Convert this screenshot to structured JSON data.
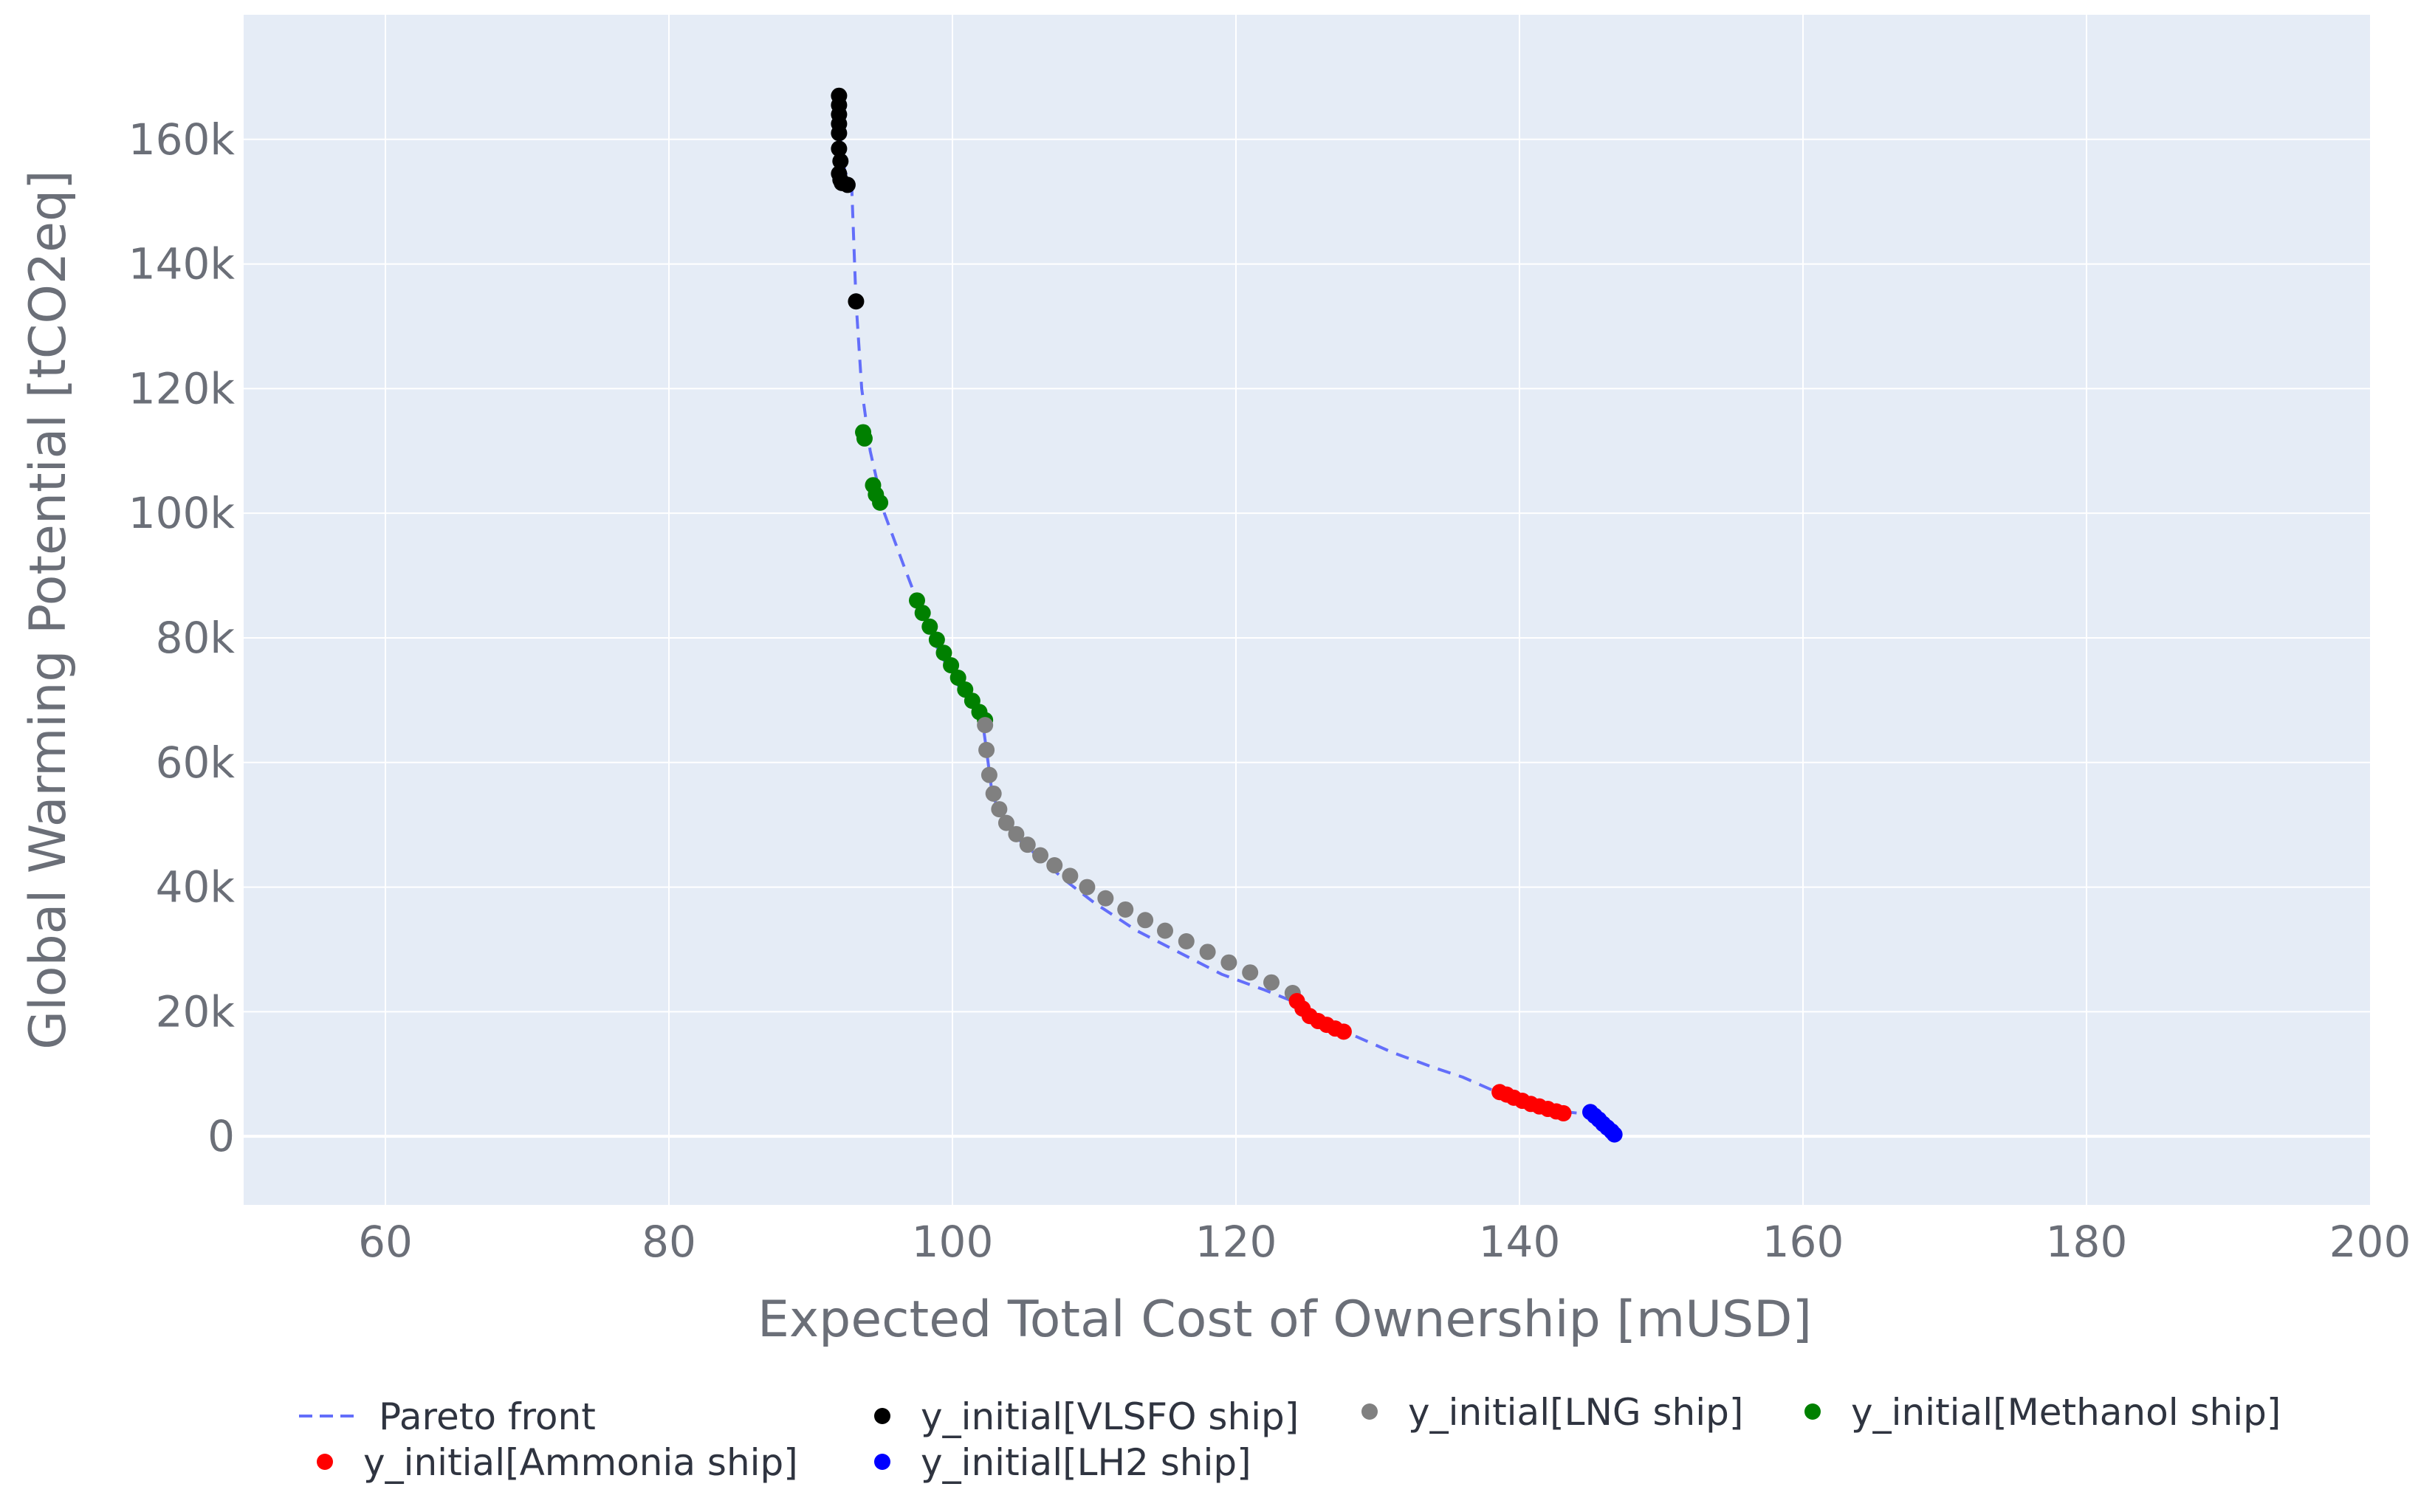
{
  "colors": {
    "plot_bg": "#e5ecf6",
    "grid": "#ffffff",
    "pareto": "#636efa",
    "vlsfo": "#000000",
    "lng": "#808080",
    "methanol": "#008000",
    "ammonia": "#ff0000",
    "lh2": "#0000ff"
  },
  "chart_data": {
    "type": "scatter",
    "title": "",
    "xlabel": "Expected Total Cost of Ownership [mUSD]",
    "ylabel": "Global Warming Potential [tCO2eq]",
    "xlim": [
      50,
      200
    ],
    "ylim": [
      -11000,
      180000
    ],
    "x_ticks": [
      60,
      80,
      100,
      120,
      140,
      160,
      180,
      200
    ],
    "x_tick_labels": [
      "60",
      "80",
      "100",
      "120",
      "140",
      "160",
      "180",
      "200"
    ],
    "y_ticks": [
      0,
      20000,
      40000,
      60000,
      80000,
      100000,
      120000,
      140000,
      160000
    ],
    "y_tick_labels": [
      "0",
      "20k",
      "40k",
      "60k",
      "80k",
      "100k",
      "120k",
      "140k",
      "160k"
    ],
    "grid": true,
    "legend_position": "bottom",
    "legend": [
      {
        "name": "Pareto front",
        "kind": "dash",
        "color_key": "pareto"
      },
      {
        "name": "y_initial[VLSFO ship]",
        "kind": "dot",
        "color_key": "vlsfo"
      },
      {
        "name": "y_initial[LNG ship]",
        "kind": "dot",
        "color_key": "lng"
      },
      {
        "name": "y_initial[Methanol ship]",
        "kind": "dot",
        "color_key": "methanol"
      },
      {
        "name": "y_initial[Ammonia ship]",
        "kind": "dot",
        "color_key": "ammonia"
      },
      {
        "name": "y_initial[LH2 ship]",
        "kind": "dot",
        "color_key": "lh2"
      }
    ],
    "series": [
      {
        "name": "Pareto front",
        "mode": "line",
        "color_key": "pareto",
        "x": [
          92.0,
          92.1,
          92.4,
          92.9,
          93.2,
          93.6,
          94.2,
          95.2,
          96.5,
          97.5,
          99.0,
          100.5,
          102.1,
          102.4,
          102.8,
          103.5,
          104.5,
          106.0,
          108.0,
          110.0,
          113.0,
          116.0,
          119.0,
          122.0,
          124.2,
          125.5,
          128.0,
          131.0,
          134.0,
          136.0,
          138.5,
          141.0,
          143.0,
          145.0,
          146.0,
          146.6
        ],
        "y": [
          167000,
          160000,
          155000,
          152000,
          134000,
          120000,
          110000,
          100000,
          92000,
          86000,
          78000,
          72000,
          67000,
          62000,
          55000,
          51000,
          48000,
          45000,
          41000,
          37500,
          33000,
          29500,
          26000,
          23500,
          21500,
          18500,
          16500,
          13500,
          11000,
          9500,
          7000,
          5500,
          4000,
          3500,
          1500,
          300
        ]
      },
      {
        "name": "y_initial[VLSFO ship]",
        "mode": "markers",
        "color_key": "vlsfo",
        "x": [
          92.0,
          92.0,
          92.0,
          92.0,
          92.0,
          92.0,
          92.1,
          92.0,
          92.1,
          92.2,
          92.6,
          93.2
        ],
        "y": [
          167000,
          165500,
          164000,
          162500,
          161000,
          158500,
          156500,
          154500,
          153500,
          153000,
          152700,
          134000
        ]
      },
      {
        "name": "y_initial[Methanol ship]",
        "mode": "markers",
        "color_key": "methanol",
        "x": [
          93.7,
          93.8,
          94.4,
          94.6,
          94.9,
          97.5,
          97.9,
          98.4,
          98.9,
          99.4,
          99.9,
          100.4,
          100.9,
          101.4,
          101.9,
          102.3
        ],
        "y": [
          113000,
          112000,
          104500,
          103000,
          101700,
          86000,
          84000,
          81800,
          79700,
          77600,
          75600,
          73600,
          71700,
          69900,
          68100,
          66800
        ]
      },
      {
        "name": "y_initial[LNG ship]",
        "mode": "markers",
        "color_key": "lng",
        "x": [
          102.3,
          102.4,
          102.6,
          102.9,
          103.3,
          103.8,
          104.5,
          105.3,
          106.2,
          107.2,
          108.3,
          109.5,
          110.8,
          112.2,
          113.6,
          115.0,
          116.5,
          118.0,
          119.5,
          121.0,
          122.5,
          124.0
        ],
        "y": [
          66000,
          62000,
          58000,
          55000,
          52500,
          50300,
          48500,
          46800,
          45100,
          43500,
          41800,
          40000,
          38200,
          36400,
          34700,
          33000,
          31300,
          29600,
          27900,
          26300,
          24700,
          23000
        ]
      },
      {
        "name": "y_initial[Ammonia ship]",
        "mode": "markers",
        "color_key": "ammonia",
        "x": [
          124.3,
          124.7,
          125.2,
          125.8,
          126.4,
          127.0,
          127.6,
          138.6,
          139.1,
          139.6,
          140.2,
          140.8,
          141.4,
          142.0,
          142.6,
          143.1
        ],
        "y": [
          21700,
          20500,
          19300,
          18500,
          17900,
          17300,
          16800,
          7100,
          6700,
          6200,
          5700,
          5200,
          4800,
          4400,
          4000,
          3700
        ]
      },
      {
        "name": "y_initial[LH2 ship]",
        "mode": "markers",
        "color_key": "lh2",
        "x": [
          145.0,
          145.3,
          145.6,
          145.9,
          146.2,
          146.5,
          146.7
        ],
        "y": [
          3900,
          3300,
          2700,
          2000,
          1400,
          800,
          300
        ]
      }
    ]
  }
}
